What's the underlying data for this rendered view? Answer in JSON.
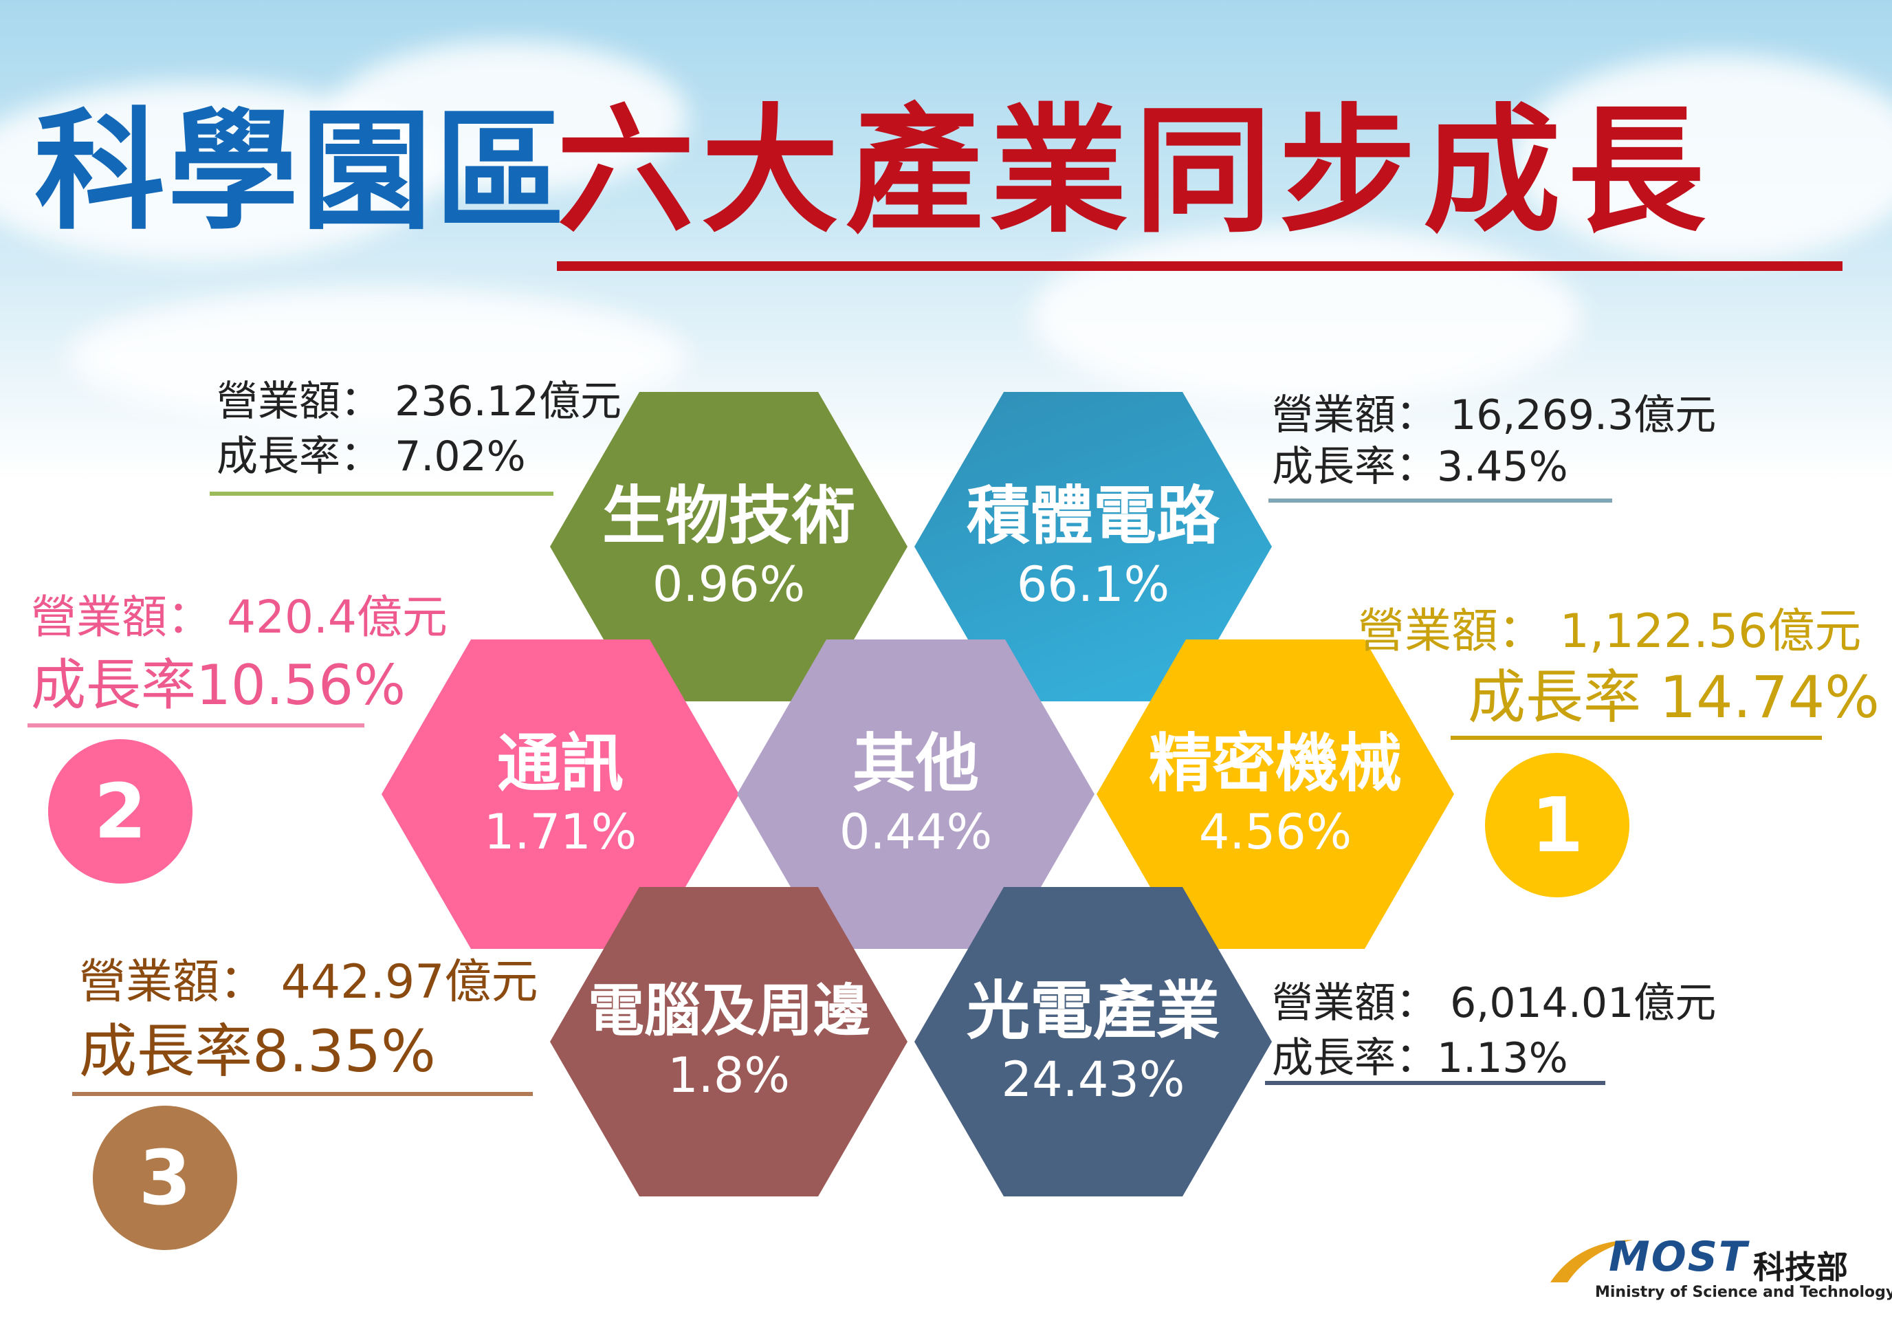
{
  "title": {
    "part1": "科學園區",
    "part2": "六大產業同步成長"
  },
  "industries": [
    {
      "name": "生物技術",
      "pct": "0.96%",
      "color": "#76923c",
      "revenue_label": "營業額： 236.12億元",
      "growth_label": "成長率： 7.02%",
      "text_color": "#222222",
      "rule_color": "#9bbb59"
    },
    {
      "name": "積體電路",
      "pct": "66.1%",
      "color": "#2a9dc8",
      "revenue_label": "營業額： 16,269.3億元",
      "growth_label": "成長率：3.45%",
      "text_color": "#222222",
      "rule_color": "#7fa7b8"
    },
    {
      "name": "通訊",
      "pct": "1.71%",
      "color": "#ff6699",
      "revenue_label": "營業額： 420.4億元",
      "growth_label": "成長率10.56%",
      "text_color": "#ee5a8e",
      "rule_color": "#f28ab0",
      "rank": "2"
    },
    {
      "name": "其他",
      "pct": "0.44%",
      "color": "#b3a2c7"
    },
    {
      "name": "精密機械",
      "pct": "4.56%",
      "color": "#ffc000",
      "revenue_label": "營業額： 1,122.56億元",
      "growth_label": "成長率 14.74%",
      "text_color": "#c9a20e",
      "rule_color": "#c9a20e",
      "rank": "1"
    },
    {
      "name": "電腦及周邊",
      "pct": "1.8%",
      "color": "#9b5a57",
      "revenue_label": "營業額： 442.97億元",
      "growth_label": "成長率8.35%",
      "text_color": "#8b4a10",
      "rule_color": "#b07a55",
      "rank": "3"
    },
    {
      "name": "光電產業",
      "pct": "24.43%",
      "color": "#4a6282",
      "revenue_label": "營業額： 6,014.01億元",
      "growth_label": "成長率：1.13%",
      "text_color": "#222222",
      "rule_color": "#4a5a78"
    }
  ],
  "badges": {
    "first_color": "#ffc500",
    "second_color": "#ff6699",
    "third_color": "#b07a4a"
  },
  "logo": {
    "brand": "MOST",
    "chinese": "科技部",
    "english": "Ministry of Science and Technology"
  }
}
